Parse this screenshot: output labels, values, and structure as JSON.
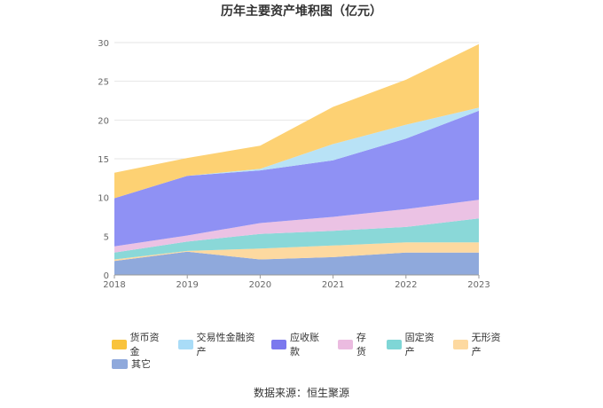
{
  "chart_data": {
    "type": "area",
    "stacked": true,
    "title": "历年主要资产堆积图（亿元）",
    "xlabel": "",
    "ylabel": "",
    "ylim": [
      0,
      30
    ],
    "yticks": [
      "0",
      "5",
      "10",
      "15",
      "20",
      "25",
      "30"
    ],
    "categories": [
      "2018",
      "2019",
      "2020",
      "2021",
      "2022",
      "2023"
    ],
    "grid": true,
    "legend_position": "bottom",
    "series": [
      {
        "name": "其它",
        "color": "#8fa9dc",
        "values": [
          1.8,
          3.0,
          2.0,
          2.3,
          2.9,
          2.9
        ]
      },
      {
        "name": "无形资产",
        "color": "#fdd9a0",
        "values": [
          0.2,
          0.1,
          1.4,
          1.5,
          1.3,
          1.3
        ]
      },
      {
        "name": "固定资产",
        "color": "#8ad8d8",
        "values": [
          0.9,
          1.2,
          1.9,
          1.9,
          2.0,
          3.1
        ]
      },
      {
        "name": "存货",
        "color": "#ebc2e4",
        "values": [
          0.8,
          0.8,
          1.4,
          1.8,
          2.3,
          2.4
        ]
      },
      {
        "name": "应收账款",
        "color": "#8f91f4",
        "values": [
          6.2,
          7.7,
          6.8,
          7.3,
          9.1,
          11.5
        ]
      },
      {
        "name": "交易性金融资产",
        "color": "#b8e2f6",
        "values": [
          0.0,
          0.0,
          0.2,
          2.1,
          1.8,
          0.4
        ]
      },
      {
        "name": "货币资金",
        "color": "#fdd173",
        "values": [
          3.3,
          2.3,
          3.0,
          4.8,
          5.8,
          8.2
        ]
      }
    ]
  },
  "legend": {
    "rows": [
      [
        "货币资金",
        "交易性金融资产",
        "应收账款",
        "存货",
        "固定资产",
        "无形资产"
      ],
      [
        "其它"
      ]
    ],
    "colors": {
      "货币资金": "#f9c33c",
      "交易性金融资产": "#a9dcf7",
      "应收账款": "#7b78ee",
      "存货": "#ebbbe0",
      "固定资产": "#7fd6d6",
      "无形资产": "#fdd9a0",
      "其它": "#8fa9dc"
    }
  },
  "source": "数据来源：恒生聚源"
}
